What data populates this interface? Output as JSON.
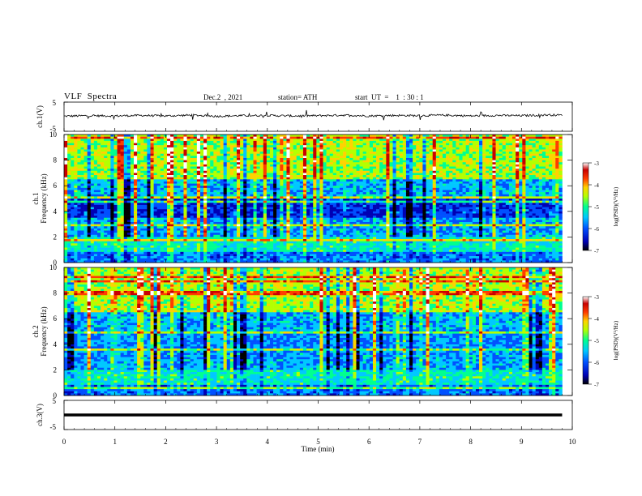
{
  "header": {
    "title": "VLF  Spectra",
    "date": "Dec.2  , 2021",
    "station": "station= ATH",
    "start_ut": "start  UT  =    1  : 30 : 1"
  },
  "chart_data": [
    {
      "type": "line",
      "panel": "ch1-waveform",
      "ylabel": "ch.1(V)",
      "ylim": [
        -5,
        5
      ],
      "yticks": [
        "5",
        "-5"
      ],
      "x": [
        0,
        0.5,
        1,
        1.5,
        2,
        2.5,
        3,
        3.5,
        4,
        4.5,
        5,
        5.5,
        6,
        6.5,
        7,
        7.5,
        8,
        8.5,
        9,
        9.5,
        9.8
      ],
      "values": [
        0.2,
        0.4,
        0.3,
        0.5,
        0.3,
        0.6,
        0.2,
        0.4,
        0.5,
        0.3,
        0.4,
        0.6,
        0.3,
        0.5,
        0.4,
        0.6,
        0.3,
        0.5,
        0.4,
        0.7,
        0.6
      ]
    },
    {
      "type": "heatmap",
      "panel": "ch1-spectrogram",
      "ylabel": "ch.1\nFrequency  (kHz)",
      "ylim": [
        0,
        10
      ],
      "yticks": [
        "0",
        "2",
        "4",
        "6",
        "8",
        "10"
      ],
      "colorbar": {
        "label": "log(PSD)(V²/Hz)",
        "range": [
          -7,
          -3
        ],
        "ticks": [
          "-3",
          "-4",
          "-5",
          "-6",
          "-7"
        ]
      }
    },
    {
      "type": "heatmap",
      "panel": "ch2-spectrogram",
      "ylabel": "ch.2\nFrequency  (kHz)",
      "ylim": [
        0,
        10
      ],
      "yticks": [
        "0",
        "2",
        "4",
        "6",
        "8",
        "10"
      ],
      "colorbar": {
        "label": "log(PSD)(V²/Hz)",
        "range": [
          -7,
          -3
        ],
        "ticks": [
          "-3",
          "-4",
          "-5",
          "-6",
          "-7"
        ]
      }
    },
    {
      "type": "line",
      "panel": "ch3-waveform",
      "ylabel": "ch.3(V)",
      "ylim": [
        -5,
        5
      ],
      "yticks": [
        "5",
        "-5"
      ],
      "x": [
        0,
        9.8
      ],
      "values": [
        0,
        0
      ]
    }
  ],
  "xaxis": {
    "label": "Time  (min)",
    "range": [
      0,
      10
    ],
    "ticks": [
      "0",
      "1",
      "2",
      "3",
      "4",
      "5",
      "6",
      "7",
      "8",
      "9",
      "10"
    ]
  },
  "colors": {
    "colormap": [
      "#000000",
      "#0000b4",
      "#0050ff",
      "#00c8ff",
      "#00ff90",
      "#b4ff00",
      "#ffd200",
      "#ff3c00",
      "#c80000",
      "#ffffff"
    ]
  }
}
